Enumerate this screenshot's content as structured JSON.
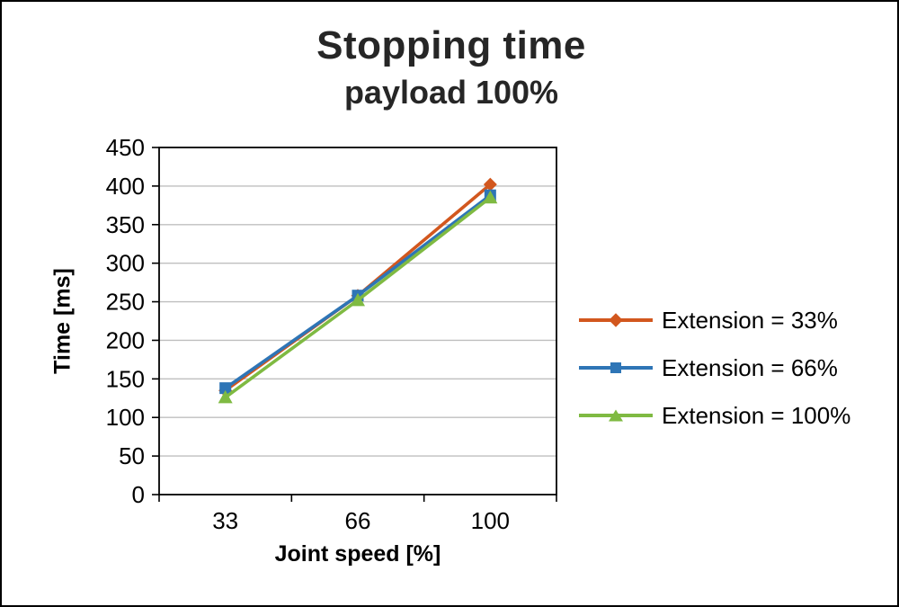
{
  "title": "Stopping time",
  "subtitle": "payload 100%",
  "chart_data": {
    "type": "line",
    "title": "Stopping time",
    "subtitle": "payload 100%",
    "xlabel": "Joint speed [%]",
    "ylabel": "Time [ms]",
    "x_labels": [
      "33",
      "66",
      "100"
    ],
    "x": [
      33,
      66,
      100
    ],
    "ylim": [
      0,
      450
    ],
    "y_step": 50,
    "grid": true,
    "legend_position": "right",
    "series": [
      {
        "name": "Extension = 33%",
        "marker": "diamond",
        "color": "#D2571E",
        "values": [
          135,
          258,
          402
        ]
      },
      {
        "name": "Extension = 66%",
        "marker": "square",
        "color": "#2E75B6",
        "values": [
          138,
          258,
          388
        ]
      },
      {
        "name": "Extension = 100%",
        "marker": "triangle",
        "color": "#7FBA42",
        "values": [
          126,
          252,
          385
        ]
      }
    ]
  }
}
